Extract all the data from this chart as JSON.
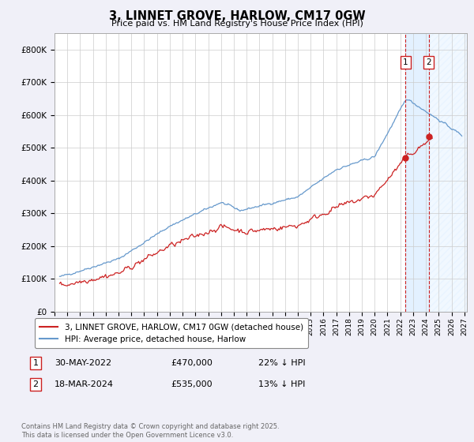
{
  "title": "3, LINNET GROVE, HARLOW, CM17 0GW",
  "subtitle": "Price paid vs. HM Land Registry's House Price Index (HPI)",
  "ylim": [
    0,
    850000
  ],
  "yticks": [
    0,
    100000,
    200000,
    300000,
    400000,
    500000,
    600000,
    700000,
    800000
  ],
  "ytick_labels": [
    "£0",
    "£100K",
    "£200K",
    "£300K",
    "£400K",
    "£500K",
    "£600K",
    "£700K",
    "£800K"
  ],
  "xlim_start": 1995.3,
  "xlim_end": 2027.2,
  "xticks": [
    1995,
    1996,
    1997,
    1998,
    1999,
    2000,
    2001,
    2002,
    2003,
    2004,
    2005,
    2006,
    2007,
    2008,
    2009,
    2010,
    2011,
    2012,
    2013,
    2014,
    2015,
    2016,
    2017,
    2018,
    2019,
    2020,
    2021,
    2022,
    2023,
    2024,
    2025,
    2026,
    2027
  ],
  "hpi_color": "#6699cc",
  "price_color": "#cc2222",
  "marker1_x": 2022.41,
  "marker1_y": 470000,
  "marker2_x": 2024.21,
  "marker2_y": 535000,
  "marker1_label": "30-MAY-2022",
  "marker1_price": "£470,000",
  "marker1_hpi": "22% ↓ HPI",
  "marker2_label": "18-MAR-2024",
  "marker2_price": "£535,000",
  "marker2_hpi": "13% ↓ HPI",
  "legend_line1": "3, LINNET GROVE, HARLOW, CM17 0GW (detached house)",
  "legend_line2": "HPI: Average price, detached house, Harlow",
  "footer": "Contains HM Land Registry data © Crown copyright and database right 2025.\nThis data is licensed under the Open Government Licence v3.0.",
  "bg_color": "#f0f0f8",
  "plot_bg": "#ffffff",
  "shaded_color": "#ddeeff",
  "hatch_color": "#c8daf0"
}
